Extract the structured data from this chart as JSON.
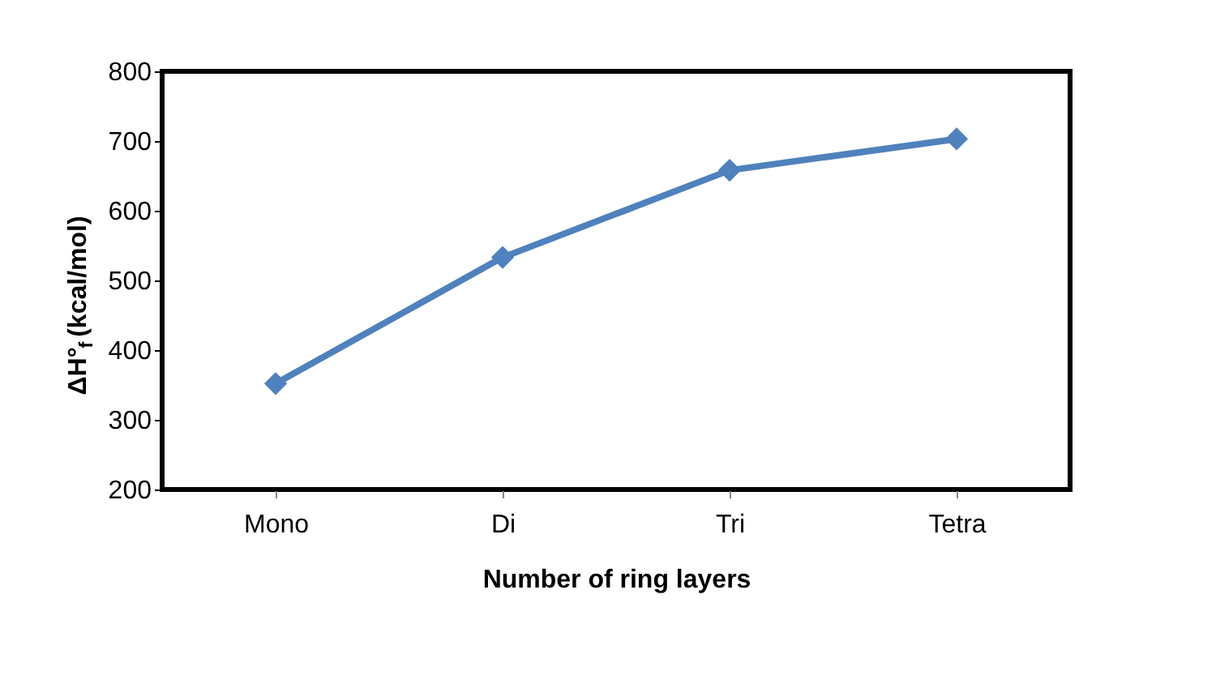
{
  "chart_data": {
    "type": "line",
    "xlabel": "Number of ring layers",
    "ylabel": "ΔH°$_{f}$ (kcal/mol)",
    "categories": [
      "Mono",
      "Di",
      "Tri",
      "Tetra"
    ],
    "series": [
      {
        "color": "#4f81bd",
        "values": [
          352,
          533,
          658,
          703
        ]
      }
    ],
    "ylim": [
      200,
      800
    ],
    "yticks": [
      200,
      300,
      400,
      500,
      600,
      700,
      800
    ],
    "grid": false,
    "marker": "diamond",
    "line_style": "solid"
  }
}
